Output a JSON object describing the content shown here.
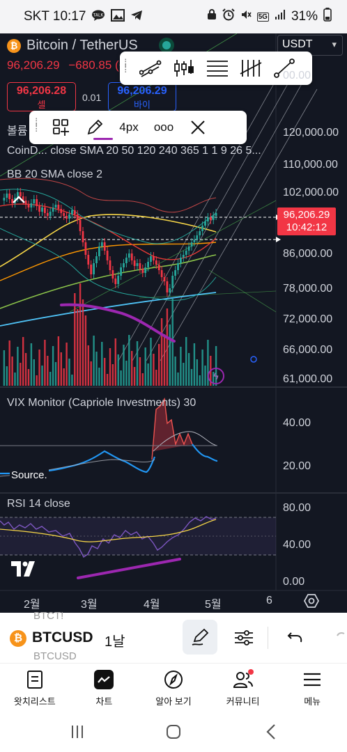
{
  "status_bar": {
    "carrier_time": "SKT 10:17",
    "left_icons": [
      "talk-icon",
      "image-icon",
      "telegram-icon"
    ],
    "battery": "31%",
    "network": "5G"
  },
  "header": {
    "pair": "Bitcoin / TetherUS",
    "last_price": "96,206.29",
    "change": "−680.85 (−",
    "currency_select": "USDT"
  },
  "trade": {
    "sell_price": "96,206.28",
    "sell_label": "셀",
    "spread": "0.01",
    "buy_price": "96,206.29",
    "buy_label": "바이"
  },
  "drawing_toolbar": {
    "width_value": "4px",
    "more": "ooo",
    "accent_color": "#9c27b0"
  },
  "indicators": {
    "volume_label": "볼륨",
    "coind_label": "CoinD... close SMA 20 50 120 240 365 1 1 9 26 5...",
    "bb_label": "BB 20 SMA close 2",
    "vix_label": "VIX Monitor (Capriole Investments) 30",
    "rsi_label": "RSI 14 close",
    "source_label": "Source."
  },
  "price_axis": {
    "labels": [
      "120,000.00",
      "110,000.00",
      "102,000.00",
      "86,000.00",
      "78,000.00",
      "72,000.00",
      "66,000.00",
      "61,000.00"
    ],
    "top_partial": "00.00",
    "current_price": "96,206.29",
    "countdown": "10:42:12"
  },
  "vix_axis": {
    "labels": [
      "40.00",
      "20.00"
    ]
  },
  "rsi_axis": {
    "labels": [
      "80.00",
      "40.00",
      "0.00"
    ]
  },
  "time_axis": {
    "labels": [
      "2월",
      "3월",
      "4월",
      "5월",
      "6"
    ]
  },
  "symbol_bar": {
    "ghost_top": "BTCT!",
    "symbol": "BTCUSD",
    "ghost_bottom": "BTCUSD",
    "timeframe": "1날"
  },
  "bottom_nav": [
    {
      "label": "왓치리스트",
      "icon": "watchlist-icon"
    },
    {
      "label": "차트",
      "icon": "chart-icon"
    },
    {
      "label": "알아 보기",
      "icon": "compass-icon"
    },
    {
      "label": "커뮤니티",
      "icon": "community-icon"
    },
    {
      "label": "메뉴",
      "icon": "menu-icon"
    }
  ],
  "colors": {
    "up": "#26a69a",
    "down": "#f23645",
    "brand_purple": "#9c27b0",
    "chart_bg": "#131722"
  }
}
